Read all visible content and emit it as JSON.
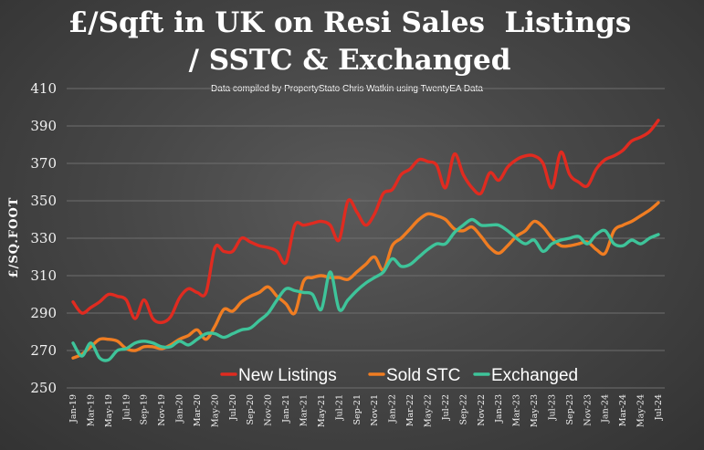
{
  "chart_data": {
    "type": "line",
    "title_line1": "£/Sqft in UK on Resi Sales  Listings",
    "title_line2": "/ SSTC & Exchanged",
    "subtitle": "Data compiled by PropertyStato Chris Watkin using TwentyEA Data",
    "ylabel": "£/SQ.FOOT",
    "xlabel": "",
    "ylim": [
      250,
      410
    ],
    "yticks": [
      250,
      270,
      290,
      310,
      330,
      350,
      370,
      390,
      410
    ],
    "grid": true,
    "legend_position": "bottom-center",
    "x_tick_labels": [
      "Jan-19",
      "Mar-19",
      "May-19",
      "Jul-19",
      "Sep-19",
      "Nov-19",
      "Jan-20",
      "Mar-20",
      "May-20",
      "Jul-20",
      "Sep-20",
      "Nov-20",
      "Jan-21",
      "Mar-21",
      "May-21",
      "Jul-21",
      "Sep-21",
      "Nov-21",
      "Jan-22",
      "Mar-22",
      "May-22",
      "Jul-22",
      "Sep-22",
      "Nov-22",
      "Jan-23",
      "Mar-23",
      "May-23",
      "Jul-23",
      "Sep-23",
      "Nov-23",
      "Jan-24",
      "Mar-24",
      "May-24",
      "Jul-24"
    ],
    "x": [
      "Jan-19",
      "Feb-19",
      "Mar-19",
      "Apr-19",
      "May-19",
      "Jun-19",
      "Jul-19",
      "Aug-19",
      "Sep-19",
      "Oct-19",
      "Nov-19",
      "Dec-19",
      "Jan-20",
      "Feb-20",
      "Mar-20",
      "Apr-20",
      "May-20",
      "Jun-20",
      "Jul-20",
      "Aug-20",
      "Sep-20",
      "Oct-20",
      "Nov-20",
      "Dec-20",
      "Jan-21",
      "Feb-21",
      "Mar-21",
      "Apr-21",
      "May-21",
      "Jun-21",
      "Jul-21",
      "Aug-21",
      "Sep-21",
      "Oct-21",
      "Nov-21",
      "Dec-21",
      "Jan-22",
      "Feb-22",
      "Mar-22",
      "Apr-22",
      "May-22",
      "Jun-22",
      "Jul-22",
      "Aug-22",
      "Sep-22",
      "Oct-22",
      "Nov-22",
      "Dec-22",
      "Jan-23",
      "Feb-23",
      "Mar-23",
      "Apr-23",
      "May-23",
      "Jun-23",
      "Jul-23",
      "Aug-23",
      "Sep-23",
      "Oct-23",
      "Nov-23",
      "Dec-23",
      "Jan-24",
      "Feb-24",
      "Mar-24",
      "Apr-24",
      "May-24",
      "Jun-24",
      "Jul-24"
    ],
    "series": [
      {
        "name": "New Listings",
        "color": "#e02b20",
        "values": [
          296,
          290,
          293,
          296,
          300,
          299,
          297,
          287,
          297,
          287,
          285,
          288,
          298,
          303,
          301,
          301,
          325,
          323,
          323,
          330,
          328,
          326,
          325,
          323,
          317,
          337,
          337,
          338,
          339,
          337,
          329,
          350,
          344,
          337,
          343,
          354,
          356,
          364,
          367,
          372,
          371,
          369,
          357,
          375,
          364,
          357,
          354,
          365,
          361,
          368,
          372,
          374,
          374,
          370,
          357,
          376,
          364,
          360,
          358,
          367,
          372,
          374,
          377,
          382,
          384,
          387,
          393
        ],
        "text": "New Listings"
      },
      {
        "name": "Sold STC",
        "color": "#f07d22",
        "values": [
          266,
          268,
          272,
          276,
          276,
          275,
          271,
          270,
          272,
          272,
          271,
          273,
          276,
          278,
          281,
          276,
          283,
          292,
          291,
          296,
          299,
          301,
          304,
          299,
          295,
          290,
          307,
          309,
          310,
          309,
          309,
          308,
          312,
          316,
          320,
          313,
          326,
          330,
          335,
          340,
          343,
          342,
          340,
          335,
          334,
          336,
          331,
          325,
          322,
          326,
          331,
          334,
          339,
          336,
          330,
          326,
          326,
          327,
          328,
          324,
          322,
          334,
          337,
          339,
          342,
          345,
          349
        ],
        "text": "Sold STC"
      },
      {
        "name": "Exchanged",
        "color": "#3ec49a",
        "values": [
          274,
          267,
          274,
          266,
          265,
          270,
          271,
          274,
          275,
          274,
          272,
          272,
          275,
          273,
          276,
          279,
          279,
          277,
          279,
          281,
          282,
          286,
          290,
          297,
          303,
          302,
          301,
          300,
          292,
          312,
          292,
          297,
          302,
          306,
          309,
          312,
          319,
          315,
          316,
          320,
          324,
          327,
          327,
          333,
          337,
          340,
          337,
          337,
          337,
          334,
          330,
          327,
          329,
          323,
          327,
          329,
          330,
          331,
          327,
          332,
          334,
          327,
          326,
          329,
          327,
          330,
          332
        ],
        "text": "Exchanged"
      }
    ]
  }
}
